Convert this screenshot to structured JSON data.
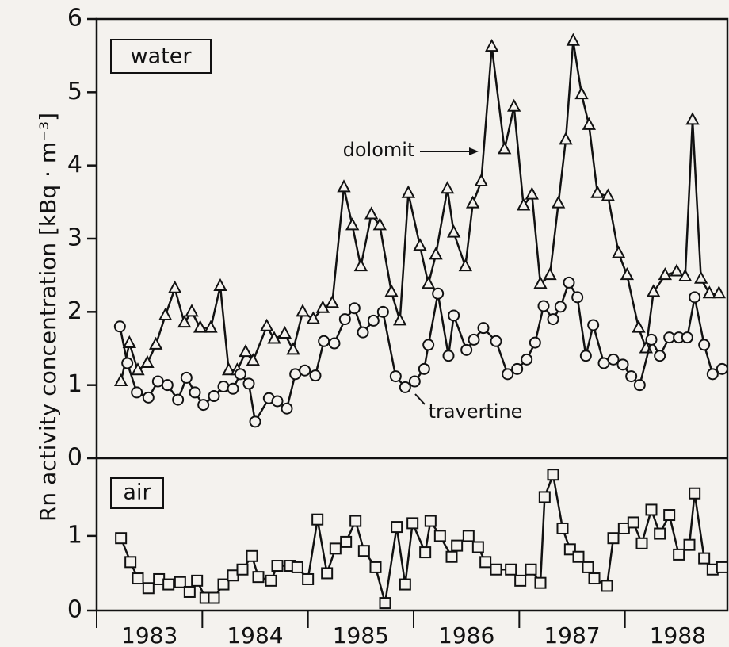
{
  "chart_data": [
    {
      "type": "line",
      "title": "water",
      "ylabel": "Rn  activity concentration [kBq · m⁻³]",
      "xlim": [
        1983,
        1988.97
      ],
      "ylim": [
        0,
        6
      ],
      "yticks": [
        0,
        1,
        2,
        3,
        4,
        5,
        6
      ],
      "series": [
        {
          "name": "dolomit",
          "color": "#111111",
          "marker": "triangle",
          "x": [
            1983.23,
            1983.31,
            1983.39,
            1983.48,
            1983.56,
            1983.65,
            1983.74,
            1983.83,
            1983.9,
            1983.98,
            1984.08,
            1984.17,
            1984.25,
            1984.33,
            1984.41,
            1984.48,
            1984.61,
            1984.68,
            1984.78,
            1984.86,
            1984.95,
            1985.05,
            1985.14,
            1985.23,
            1985.34,
            1985.42,
            1985.5,
            1985.6,
            1985.68,
            1985.79,
            1985.87,
            1985.95,
            1986.06,
            1986.14,
            1986.21,
            1986.32,
            1986.38,
            1986.49,
            1986.56,
            1986.64,
            1986.74,
            1986.86,
            1986.95,
            1987.04,
            1987.12,
            1987.2,
            1987.29,
            1987.37,
            1987.44,
            1987.51,
            1987.59,
            1987.66,
            1987.74,
            1987.84,
            1987.94,
            1988.02,
            1988.13,
            1988.2,
            1988.27,
            1988.38,
            1988.49,
            1988.57,
            1988.64,
            1988.72,
            1988.8,
            1988.89
          ],
          "values": [
            1.05,
            1.57,
            1.2,
            1.3,
            1.55,
            1.95,
            2.32,
            1.85,
            2.0,
            1.78,
            1.78,
            2.35,
            1.2,
            1.2,
            1.45,
            1.33,
            1.8,
            1.63,
            1.7,
            1.48,
            2.0,
            1.9,
            2.05,
            2.12,
            3.7,
            3.18,
            2.62,
            3.33,
            3.18,
            2.27,
            1.88,
            3.62,
            2.9,
            2.38,
            2.78,
            3.68,
            3.08,
            2.62,
            3.48,
            3.78,
            5.62,
            4.22,
            4.8,
            3.45,
            3.6,
            2.38,
            2.5,
            3.48,
            4.35,
            5.7,
            4.97,
            4.55,
            3.62,
            3.58,
            2.8,
            2.5,
            1.78,
            1.5,
            2.27,
            2.5,
            2.55,
            2.48,
            4.62,
            2.45,
            2.25,
            2.25
          ]
        },
        {
          "name": "travertine",
          "color": "#111111",
          "marker": "circle",
          "x": [
            1983.22,
            1983.29,
            1983.38,
            1983.49,
            1983.58,
            1983.67,
            1983.77,
            1983.85,
            1983.93,
            1984.01,
            1984.11,
            1984.2,
            1984.29,
            1984.36,
            1984.44,
            1984.5,
            1984.63,
            1984.71,
            1984.8,
            1984.88,
            1984.97,
            1985.07,
            1985.15,
            1985.25,
            1985.35,
            1985.44,
            1985.52,
            1985.62,
            1985.71,
            1985.83,
            1985.92,
            1986.01,
            1986.1,
            1986.14,
            1986.23,
            1986.33,
            1986.38,
            1986.5,
            1986.57,
            1986.66,
            1986.78,
            1986.89,
            1986.98,
            1987.07,
            1987.15,
            1987.23,
            1987.32,
            1987.39,
            1987.47,
            1987.55,
            1987.63,
            1987.7,
            1987.8,
            1987.89,
            1987.98,
            1988.06,
            1988.14,
            1988.25,
            1988.33,
            1988.42,
            1988.51,
            1988.59,
            1988.66,
            1988.75,
            1988.83,
            1988.92
          ],
          "values": [
            1.8,
            1.3,
            0.9,
            0.83,
            1.05,
            1.0,
            0.8,
            1.1,
            0.9,
            0.73,
            0.85,
            0.98,
            0.95,
            1.15,
            1.02,
            0.5,
            0.82,
            0.78,
            0.68,
            1.15,
            1.2,
            1.13,
            1.6,
            1.57,
            1.9,
            2.05,
            1.72,
            1.88,
            2.0,
            1.12,
            0.97,
            1.05,
            1.22,
            1.55,
            2.25,
            1.4,
            1.95,
            1.48,
            1.62,
            1.78,
            1.6,
            1.15,
            1.22,
            1.35,
            1.58,
            2.08,
            1.9,
            2.07,
            2.4,
            2.2,
            1.4,
            1.82,
            1.3,
            1.35,
            1.28,
            1.12,
            1.0,
            1.62,
            1.4,
            1.65,
            1.65,
            1.65,
            2.2,
            1.55,
            1.15,
            1.22
          ]
        }
      ]
    },
    {
      "type": "line",
      "title": "air",
      "xlim": [
        1983,
        1988.97
      ],
      "xticks": [
        1983,
        1984,
        1985,
        1986,
        1987,
        1988
      ],
      "ylim": [
        0,
        2.04
      ],
      "yticks": [
        0,
        1
      ],
      "series": [
        {
          "name": null,
          "color": "#111111",
          "marker": "square",
          "x": [
            1983.23,
            1983.32,
            1983.39,
            1983.49,
            1983.59,
            1983.68,
            1983.79,
            1983.88,
            1983.95,
            1984.03,
            1984.11,
            1984.2,
            1984.29,
            1984.38,
            1984.47,
            1984.53,
            1984.65,
            1984.71,
            1984.83,
            1984.9,
            1985.0,
            1985.09,
            1985.18,
            1985.26,
            1985.36,
            1985.45,
            1985.53,
            1985.64,
            1985.73,
            1985.84,
            1985.92,
            1985.99,
            1986.11,
            1986.16,
            1986.25,
            1986.36,
            1986.41,
            1986.52,
            1986.61,
            1986.68,
            1986.78,
            1986.92,
            1987.01,
            1987.11,
            1987.2,
            1987.24,
            1987.32,
            1987.41,
            1987.48,
            1987.56,
            1987.65,
            1987.71,
            1987.83,
            1987.89,
            1987.99,
            1988.08,
            1988.16,
            1988.25,
            1988.33,
            1988.42,
            1988.51,
            1988.61,
            1988.66,
            1988.75,
            1988.83,
            1988.92
          ],
          "values": [
            0.97,
            0.65,
            0.43,
            0.3,
            0.42,
            0.35,
            0.38,
            0.25,
            0.4,
            0.17,
            0.17,
            0.35,
            0.47,
            0.55,
            0.73,
            0.45,
            0.4,
            0.6,
            0.6,
            0.58,
            0.42,
            1.22,
            0.5,
            0.83,
            0.92,
            1.2,
            0.8,
            0.58,
            0.1,
            1.12,
            0.35,
            1.17,
            0.78,
            1.2,
            1.0,
            0.72,
            0.87,
            1.0,
            0.85,
            0.65,
            0.55,
            0.55,
            0.4,
            0.55,
            0.37,
            1.52,
            1.82,
            1.1,
            0.82,
            0.72,
            0.58,
            0.43,
            0.33,
            0.97,
            1.1,
            1.18,
            0.9,
            1.35,
            1.03,
            1.28,
            0.75,
            0.88,
            1.57,
            0.7,
            0.55,
            0.58
          ]
        }
      ]
    }
  ]
}
